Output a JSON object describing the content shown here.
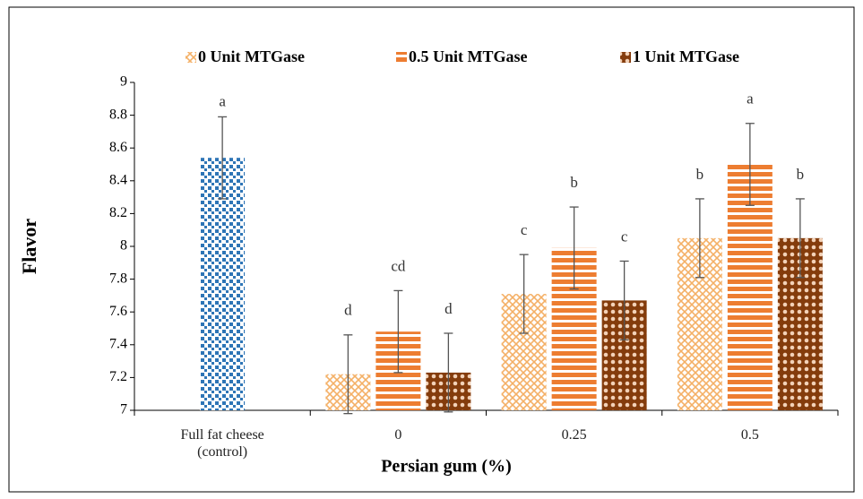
{
  "chart_data": {
    "type": "bar",
    "x_label": "Persian gum (%)",
    "y_label": "Flavor",
    "categories": [
      "Full fat cheese (control)",
      "0",
      "0.25",
      "0.5"
    ],
    "control": {
      "color": "#2e75b6",
      "value": 8.54,
      "error": 0.25,
      "letter": "a"
    },
    "series": [
      {
        "name": "0 Unit MTGase",
        "color": "#f4b066",
        "values": [
          null,
          7.22,
          7.71,
          8.05
        ],
        "errors": [
          null,
          0.24,
          0.24,
          0.24
        ],
        "letters": [
          null,
          "d",
          "c",
          "b"
        ]
      },
      {
        "name": "0.5 Unit MTGase",
        "color": "#ed7d31",
        "values": [
          null,
          7.48,
          7.99,
          8.5
        ],
        "errors": [
          null,
          0.25,
          0.25,
          0.25
        ],
        "letters": [
          null,
          "cd",
          "b",
          "a"
        ]
      },
      {
        "name": "1 Unit MTGase",
        "color": "#843c0c",
        "values": [
          null,
          7.23,
          7.67,
          8.05
        ],
        "errors": [
          null,
          0.24,
          0.24,
          0.24
        ],
        "letters": [
          null,
          "d",
          "c",
          "b"
        ]
      }
    ],
    "ylim": [
      7,
      9
    ],
    "yticks": [
      7,
      7.2,
      7.4,
      7.6,
      7.8,
      8,
      8.2,
      8.4,
      8.6,
      8.8,
      9
    ],
    "grid": false,
    "legend": "top"
  }
}
